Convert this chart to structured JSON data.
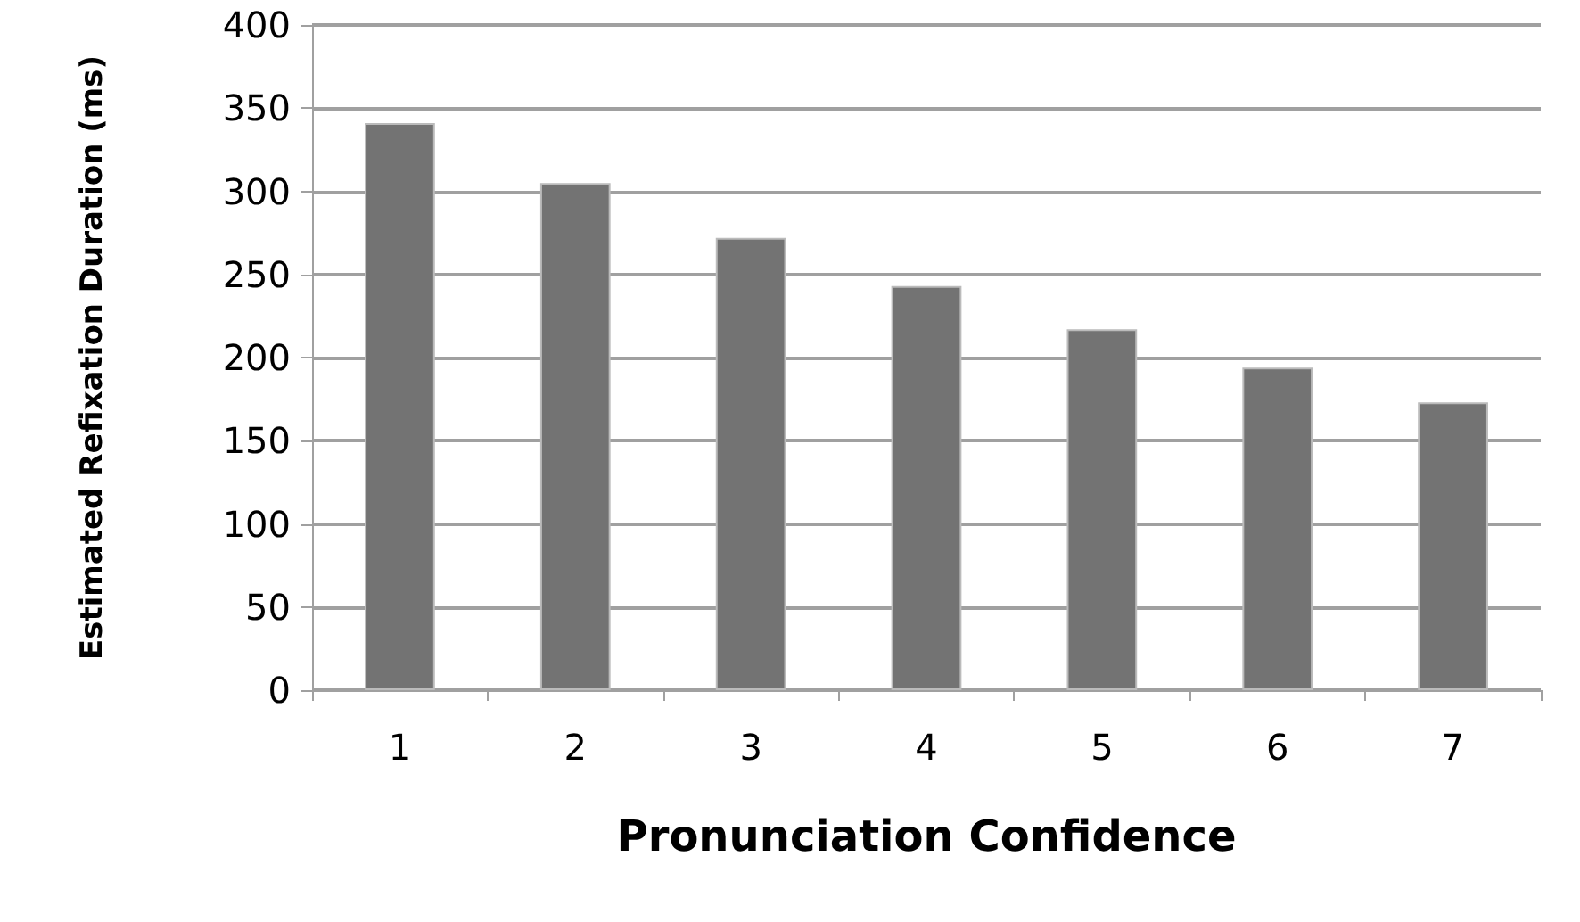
{
  "chart_data": {
    "type": "bar",
    "xlabel": "Pronunciation Confidence",
    "ylabel": "Estimated Refixation Duration (ms)",
    "categories": [
      "1",
      "2",
      "3",
      "4",
      "5",
      "6",
      "7"
    ],
    "values": [
      341,
      305,
      272,
      243,
      217,
      194,
      173
    ],
    "color": "#737373",
    "ylim": [
      0,
      400
    ],
    "yticks": [
      0,
      50,
      100,
      150,
      200,
      250,
      300,
      350,
      400
    ],
    "grid": "y"
  }
}
